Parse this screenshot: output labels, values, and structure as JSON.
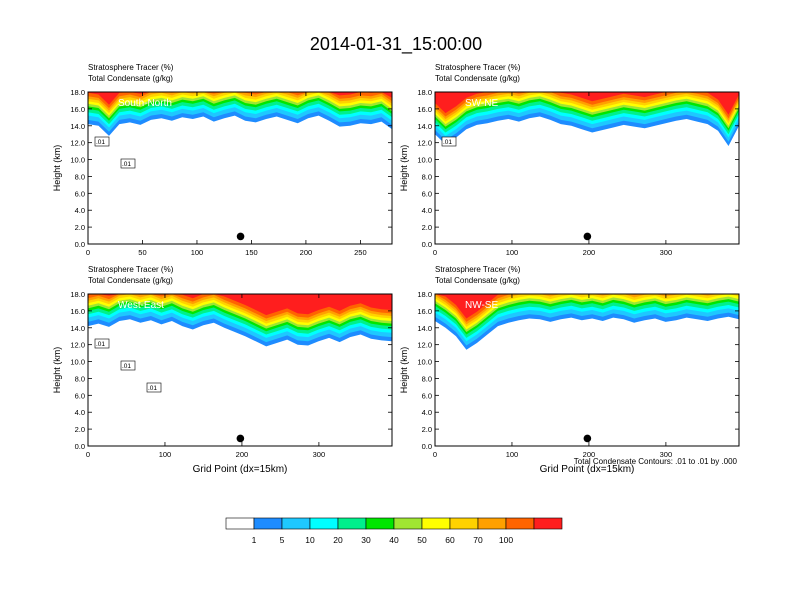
{
  "figure": {
    "title": "2014-01-31_15:00:00",
    "footnote": "Total Condensate Contours: .01 to .01 by .000"
  },
  "colorbar": {
    "colors": [
      "#ffffff",
      "#1e8cff",
      "#1ec8ff",
      "#00ffff",
      "#00f08c",
      "#00e600",
      "#a0e632",
      "#ffff00",
      "#ffd200",
      "#ffa000",
      "#ff6400",
      "#ff1e1e"
    ],
    "labels": [
      "1",
      "5",
      "10",
      "20",
      "30",
      "40",
      "50",
      "60",
      "70",
      "100"
    ]
  },
  "chart_data": [
    {
      "type": "heatmap",
      "panel_label": "South-North",
      "header_line1": "Stratosphere Tracer   (%)",
      "header_line2": "Total Condensate   (g/kg)",
      "ylabel": "Height (km)",
      "xlabel": "",
      "xlim": [
        0,
        279
      ],
      "ylim": [
        0,
        18
      ],
      "xticks": [
        0,
        50,
        100,
        150,
        200,
        250
      ],
      "yticks": [
        "0.0",
        "2.0",
        "4.0",
        "6.0",
        "8.0",
        "10.0",
        "12.0",
        "14.0",
        "16.0",
        "18.0"
      ],
      "tracer_base_km": [
        14.2,
        14.0,
        12.8,
        14.2,
        14.4,
        14.1,
        14.7,
        14.9,
        14.6,
        15.0,
        14.8,
        15.1,
        14.5,
        14.9,
        15.2,
        14.6,
        14.4,
        14.8,
        15.1,
        14.7,
        14.3,
        14.9,
        15.2,
        14.6,
        13.9,
        14.0,
        14.3,
        14.2,
        14.5,
        13.6
      ],
      "point_marker": {
        "x": 140,
        "y": 0.9
      },
      "contour_labels": [
        ".01",
        ".01"
      ]
    },
    {
      "type": "heatmap",
      "panel_label": "SW-NE",
      "header_line1": "Stratosphere Tracer   (%)",
      "header_line2": "Total Condensate   (g/kg)",
      "ylabel": "Height (km)",
      "xlabel": "",
      "xlim": [
        0,
        395
      ],
      "ylim": [
        0,
        18
      ],
      "xticks": [
        0,
        100,
        200,
        300
      ],
      "yticks": [
        "0.0",
        "2.0",
        "4.0",
        "6.0",
        "8.0",
        "10.0",
        "12.0",
        "14.0",
        "16.0",
        "18.0"
      ],
      "tracer_base_km": [
        13.0,
        11.8,
        12.6,
        13.6,
        14.1,
        14.3,
        14.6,
        14.8,
        14.5,
        14.9,
        15.1,
        14.7,
        14.2,
        14.0,
        13.6,
        13.2,
        13.5,
        13.8,
        14.1,
        13.9,
        13.7,
        14.0,
        14.3,
        14.6,
        14.8,
        14.5,
        14.2,
        13.4,
        11.6,
        14.0
      ],
      "point_marker": {
        "x": 198,
        "y": 0.9
      },
      "contour_labels": [
        ".01"
      ]
    },
    {
      "type": "heatmap",
      "panel_label": "West-East",
      "header_line1": "Stratosphere Tracer   (%)",
      "header_line2": "Total Condensate   (g/kg)",
      "ylabel": "Height (km)",
      "xlabel": "Grid Point (dx=15km)",
      "xlim": [
        0,
        395
      ],
      "ylim": [
        0,
        18
      ],
      "xticks": [
        0,
        100,
        200,
        300
      ],
      "yticks": [
        "0.0",
        "2.0",
        "4.0",
        "6.0",
        "8.0",
        "10.0",
        "12.0",
        "14.0",
        "16.0",
        "18.0"
      ],
      "tracer_base_km": [
        14.2,
        14.5,
        14.1,
        14.8,
        15.0,
        14.6,
        14.9,
        14.4,
        14.8,
        14.2,
        13.8,
        14.3,
        14.6,
        14.0,
        13.5,
        13.0,
        12.4,
        11.8,
        12.2,
        12.6,
        12.0,
        11.9,
        12.4,
        12.8,
        12.3,
        12.9,
        13.2,
        12.7,
        12.5,
        12.4
      ],
      "point_marker": {
        "x": 198,
        "y": 0.9
      },
      "contour_labels": [
        ".01",
        ".01",
        ".01"
      ]
    },
    {
      "type": "heatmap",
      "panel_label": "NW-SE",
      "header_line1": "Stratosphere Tracer   (%)",
      "header_line2": "Total Condensate   (g/kg)",
      "ylabel": "Height (km)",
      "xlabel": "Grid Point (dx=15km)",
      "xlim": [
        0,
        395
      ],
      "ylim": [
        0,
        18
      ],
      "xticks": [
        0,
        100,
        200,
        300
      ],
      "yticks": [
        "0.0",
        "2.0",
        "4.0",
        "6.0",
        "8.0",
        "10.0",
        "12.0",
        "14.0",
        "16.0",
        "18.0"
      ],
      "tracer_base_km": [
        14.8,
        14.0,
        13.0,
        11.4,
        12.2,
        13.2,
        14.2,
        14.6,
        14.9,
        15.1,
        15.0,
        14.7,
        15.0,
        15.2,
        14.9,
        15.1,
        14.8,
        15.2,
        15.0,
        14.6,
        14.9,
        15.1,
        14.7,
        14.9,
        15.2,
        15.0,
        14.8,
        15.1,
        15.3,
        15.0
      ],
      "point_marker": {
        "x": 198,
        "y": 0.9
      },
      "contour_labels": []
    }
  ]
}
